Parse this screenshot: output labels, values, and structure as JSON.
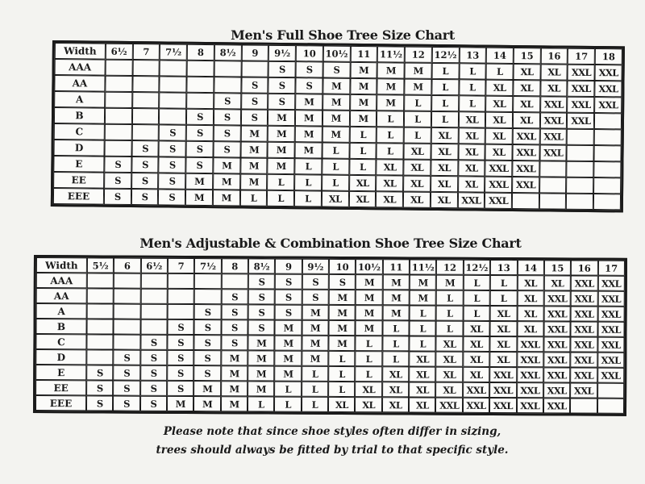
{
  "full_chart": {
    "title": "Men's Full Shoe Tree Size Chart",
    "header_label": "Width",
    "sizes": [
      "6½",
      "7",
      "7½",
      "8",
      "8½",
      "9",
      "9½",
      "10",
      "10½",
      "11",
      "11½",
      "12",
      "12½",
      "13",
      "14",
      "15",
      "16",
      "17",
      "18"
    ],
    "rows": [
      {
        "width": "AAA",
        "cells": [
          "",
          "",
          "",
          "",
          "",
          "",
          "S",
          "S",
          "S",
          "M",
          "M",
          "M",
          "L",
          "L",
          "L",
          "XL",
          "XL",
          "XXL",
          "XXL"
        ]
      },
      {
        "width": "AA",
        "cells": [
          "",
          "",
          "",
          "",
          "",
          "S",
          "S",
          "S",
          "M",
          "M",
          "M",
          "M",
          "L",
          "L",
          "XL",
          "XL",
          "XL",
          "XXL",
          "XXL"
        ]
      },
      {
        "width": "A",
        "cells": [
          "",
          "",
          "",
          "",
          "S",
          "S",
          "S",
          "M",
          "M",
          "M",
          "M",
          "L",
          "L",
          "L",
          "XL",
          "XL",
          "XXL",
          "XXL",
          "XXL"
        ]
      },
      {
        "width": "B",
        "cells": [
          "",
          "",
          "",
          "S",
          "S",
          "S",
          "M",
          "M",
          "M",
          "M",
          "L",
          "L",
          "L",
          "XL",
          "XL",
          "XL",
          "XXL",
          "XXL",
          ""
        ]
      },
      {
        "width": "C",
        "cells": [
          "",
          "",
          "S",
          "S",
          "S",
          "M",
          "M",
          "M",
          "M",
          "L",
          "L",
          "L",
          "XL",
          "XL",
          "XL",
          "XXL",
          "XXL",
          "",
          ""
        ]
      },
      {
        "width": "D",
        "cells": [
          "",
          "S",
          "S",
          "S",
          "S",
          "M",
          "M",
          "M",
          "L",
          "L",
          "L",
          "XL",
          "XL",
          "XL",
          "XL",
          "XXL",
          "XXL",
          "",
          ""
        ]
      },
      {
        "width": "E",
        "cells": [
          "S",
          "S",
          "S",
          "S",
          "M",
          "M",
          "M",
          "L",
          "L",
          "L",
          "XL",
          "XL",
          "XL",
          "XL",
          "XXL",
          "XXL",
          "",
          "",
          ""
        ]
      },
      {
        "width": "EE",
        "cells": [
          "S",
          "S",
          "S",
          "M",
          "M",
          "M",
          "L",
          "L",
          "L",
          "XL",
          "XL",
          "XL",
          "XL",
          "XL",
          "XXL",
          "XXL",
          "",
          "",
          ""
        ]
      },
      {
        "width": "EEE",
        "cells": [
          "S",
          "S",
          "S",
          "M",
          "M",
          "L",
          "L",
          "L",
          "XL",
          "XL",
          "XL",
          "XL",
          "XL",
          "XXL",
          "XXL",
          "",
          "",
          "",
          ""
        ]
      }
    ]
  },
  "adjustable_chart": {
    "title": "Men's Adjustable & Combination Shoe Tree Size Chart",
    "header_label": "Width",
    "sizes": [
      "5½",
      "6",
      "6½",
      "7",
      "7½",
      "8",
      "8½",
      "9",
      "9½",
      "10",
      "10½",
      "11",
      "11½",
      "12",
      "12½",
      "13",
      "14",
      "15",
      "16",
      "17"
    ],
    "rows": [
      {
        "width": "AAA",
        "cells": [
          "",
          "",
          "",
          "",
          "",
          "",
          "S",
          "S",
          "S",
          "S",
          "M",
          "M",
          "M",
          "M",
          "L",
          "L",
          "XL",
          "XL",
          "XXL",
          "XXL"
        ]
      },
      {
        "width": "AA",
        "cells": [
          "",
          "",
          "",
          "",
          "",
          "S",
          "S",
          "S",
          "S",
          "M",
          "M",
          "M",
          "M",
          "L",
          "L",
          "L",
          "XL",
          "XXL",
          "XXL",
          "XXL"
        ]
      },
      {
        "width": "A",
        "cells": [
          "",
          "",
          "",
          "",
          "S",
          "S",
          "S",
          "S",
          "M",
          "M",
          "M",
          "M",
          "L",
          "L",
          "L",
          "XL",
          "XL",
          "XXL",
          "XXL",
          "XXL"
        ]
      },
      {
        "width": "B",
        "cells": [
          "",
          "",
          "",
          "S",
          "S",
          "S",
          "S",
          "M",
          "M",
          "M",
          "M",
          "L",
          "L",
          "L",
          "XL",
          "XL",
          "XL",
          "XXL",
          "XXL",
          "XXL"
        ]
      },
      {
        "width": "C",
        "cells": [
          "",
          "",
          "S",
          "S",
          "S",
          "S",
          "M",
          "M",
          "M",
          "M",
          "L",
          "L",
          "L",
          "XL",
          "XL",
          "XL",
          "XXL",
          "XXL",
          "XXL",
          "XXL"
        ]
      },
      {
        "width": "D",
        "cells": [
          "",
          "S",
          "S",
          "S",
          "S",
          "M",
          "M",
          "M",
          "M",
          "L",
          "L",
          "L",
          "XL",
          "XL",
          "XL",
          "XL",
          "XXL",
          "XXL",
          "XXL",
          "XXL"
        ]
      },
      {
        "width": "E",
        "cells": [
          "S",
          "S",
          "S",
          "S",
          "S",
          "M",
          "M",
          "M",
          "L",
          "L",
          "L",
          "XL",
          "XL",
          "XL",
          "XL",
          "XXL",
          "XXL",
          "XXL",
          "XXL",
          "XXL"
        ]
      },
      {
        "width": "EE",
        "cells": [
          "S",
          "S",
          "S",
          "S",
          "M",
          "M",
          "M",
          "L",
          "L",
          "L",
          "XL",
          "XL",
          "XL",
          "XL",
          "XXL",
          "XXL",
          "XXL",
          "XXL",
          "XXL",
          ""
        ]
      },
      {
        "width": "EEE",
        "cells": [
          "S",
          "S",
          "S",
          "M",
          "M",
          "M",
          "L",
          "L",
          "L",
          "XL",
          "XL",
          "XL",
          "XL",
          "XXL",
          "XXL",
          "XXL",
          "XXL",
          "XXL",
          "",
          ""
        ]
      }
    ]
  },
  "note": {
    "line1": "Please note that since shoe styles often differ in sizing,",
    "line2": "trees should always be fitted by trial to that specific style."
  }
}
